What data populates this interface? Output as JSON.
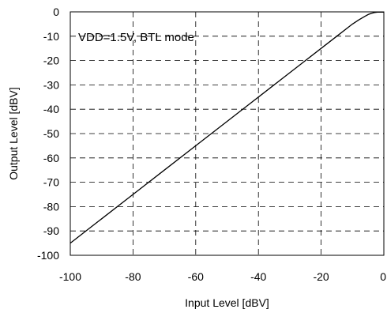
{
  "chart_data": {
    "type": "line",
    "title": "",
    "xlabel": "Input Level [dBV]",
    "ylabel": "Output Level [dBV]",
    "xlim": [
      -100,
      0
    ],
    "ylim": [
      -100,
      0
    ],
    "xticks": [
      -100,
      -80,
      -60,
      -40,
      -20,
      0
    ],
    "yticks": [
      0,
      -10,
      -20,
      -30,
      -40,
      -50,
      -60,
      -70,
      -80,
      -90,
      -100
    ],
    "xtick_labels": [
      "-100",
      "-80",
      "-60",
      "-40",
      "-20",
      "0"
    ],
    "ytick_labels": [
      "0",
      "-10",
      "-20",
      "-30",
      "-40",
      "-50",
      "-60",
      "-70",
      "-80",
      "-90",
      "-100"
    ],
    "grid": true,
    "grid_style": "dashed",
    "annotation": "VDD=1.5V, BTL mode",
    "series": [
      {
        "x": [
          -100,
          -90,
          -80,
          -70,
          -60,
          -50,
          -40,
          -30,
          -20,
          -15,
          -10,
          -8,
          -6,
          -5,
          -4,
          -3,
          -2,
          -1,
          0
        ],
        "y": [
          -95,
          -85,
          -75,
          -65,
          -55,
          -45,
          -35,
          -25,
          -15,
          -10,
          -5,
          -3.3,
          -1.8,
          -1.1,
          -0.6,
          -0.3,
          -0.1,
          -0.1,
          -0.1
        ]
      }
    ],
    "line_color": "#000000"
  }
}
